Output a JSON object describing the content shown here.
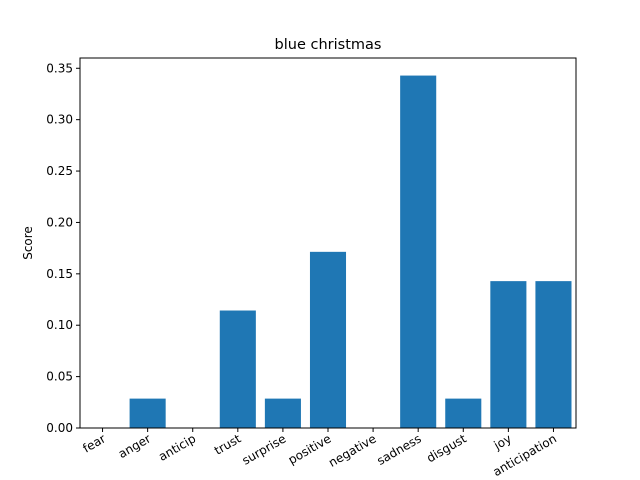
{
  "chart_data": {
    "type": "bar",
    "title": "blue christmas",
    "xlabel": "",
    "ylabel": "Score",
    "categories": [
      "fear",
      "anger",
      "anticip",
      "trust",
      "surprise",
      "positive",
      "negative",
      "sadness",
      "disgust",
      "joy",
      "anticipation"
    ],
    "values": [
      0.0,
      0.0286,
      0.0,
      0.1143,
      0.0286,
      0.1714,
      0.0,
      0.3429,
      0.0286,
      0.1429,
      0.1429
    ],
    "ylim": [
      0,
      0.36
    ],
    "yticks": [
      0.0,
      0.05,
      0.1,
      0.15,
      0.2,
      0.25,
      0.3,
      0.35
    ],
    "ytick_labels": [
      "0.00",
      "0.05",
      "0.10",
      "0.15",
      "0.20",
      "0.25",
      "0.30",
      "0.35"
    ],
    "bar_color": "#1f77b4",
    "grid": false,
    "legend": "none"
  }
}
